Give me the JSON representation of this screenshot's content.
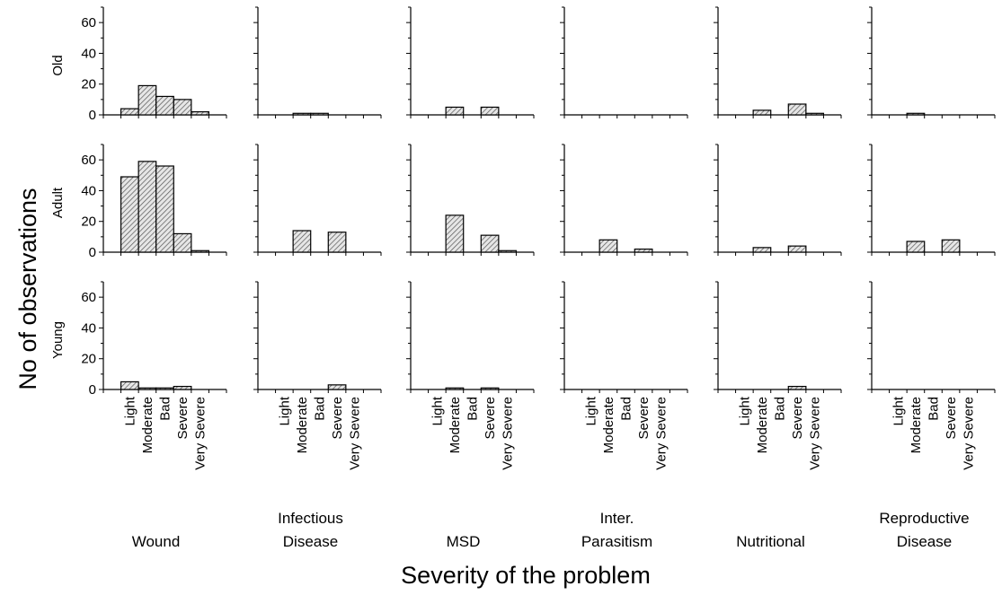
{
  "chart_data": {
    "type": "bar",
    "xlabel": "Severity of the problem",
    "ylabel": "No of observations",
    "categories": [
      "Light",
      "Moderate",
      "Bad",
      "Severe",
      "Very Severe"
    ],
    "ylim": [
      0,
      70
    ],
    "yticks": [
      0,
      20,
      40,
      60
    ],
    "grid": false,
    "pattern": "diagonal-hatch",
    "bar_color": "#d9d9d9",
    "rows": [
      "Old",
      "Adult",
      "Young"
    ],
    "columns": [
      {
        "name_lines": [
          "Wound"
        ]
      },
      {
        "name_lines": [
          "Infectious",
          "Disease"
        ]
      },
      {
        "name_lines": [
          "MSD"
        ]
      },
      {
        "name_lines": [
          "Inter.",
          "Parasitism"
        ]
      },
      {
        "name_lines": [
          "Nutritional"
        ]
      },
      {
        "name_lines": [
          "Reproductive",
          "Disease"
        ]
      }
    ],
    "values": {
      "Old": [
        [
          4,
          19,
          12,
          10,
          2
        ],
        [
          0,
          1,
          1,
          0,
          0
        ],
        [
          0,
          5,
          0,
          5,
          0
        ],
        [
          0,
          0,
          0,
          0,
          0
        ],
        [
          0,
          3,
          0,
          7,
          1
        ],
        [
          0,
          1,
          0,
          0,
          0
        ]
      ],
      "Adult": [
        [
          49,
          59,
          56,
          12,
          1
        ],
        [
          0,
          14,
          0,
          13,
          0
        ],
        [
          0,
          24,
          0,
          11,
          1
        ],
        [
          0,
          8,
          0,
          2,
          0
        ],
        [
          0,
          3,
          0,
          4,
          0
        ],
        [
          0,
          7,
          0,
          8,
          0
        ]
      ],
      "Young": [
        [
          5,
          1,
          1,
          2,
          0
        ],
        [
          0,
          0,
          0,
          3,
          0
        ],
        [
          0,
          1,
          0,
          1,
          0
        ],
        [
          0,
          0,
          0,
          0,
          0
        ],
        [
          0,
          0,
          0,
          2,
          0
        ],
        [
          0,
          0,
          0,
          0,
          0
        ]
      ]
    }
  }
}
